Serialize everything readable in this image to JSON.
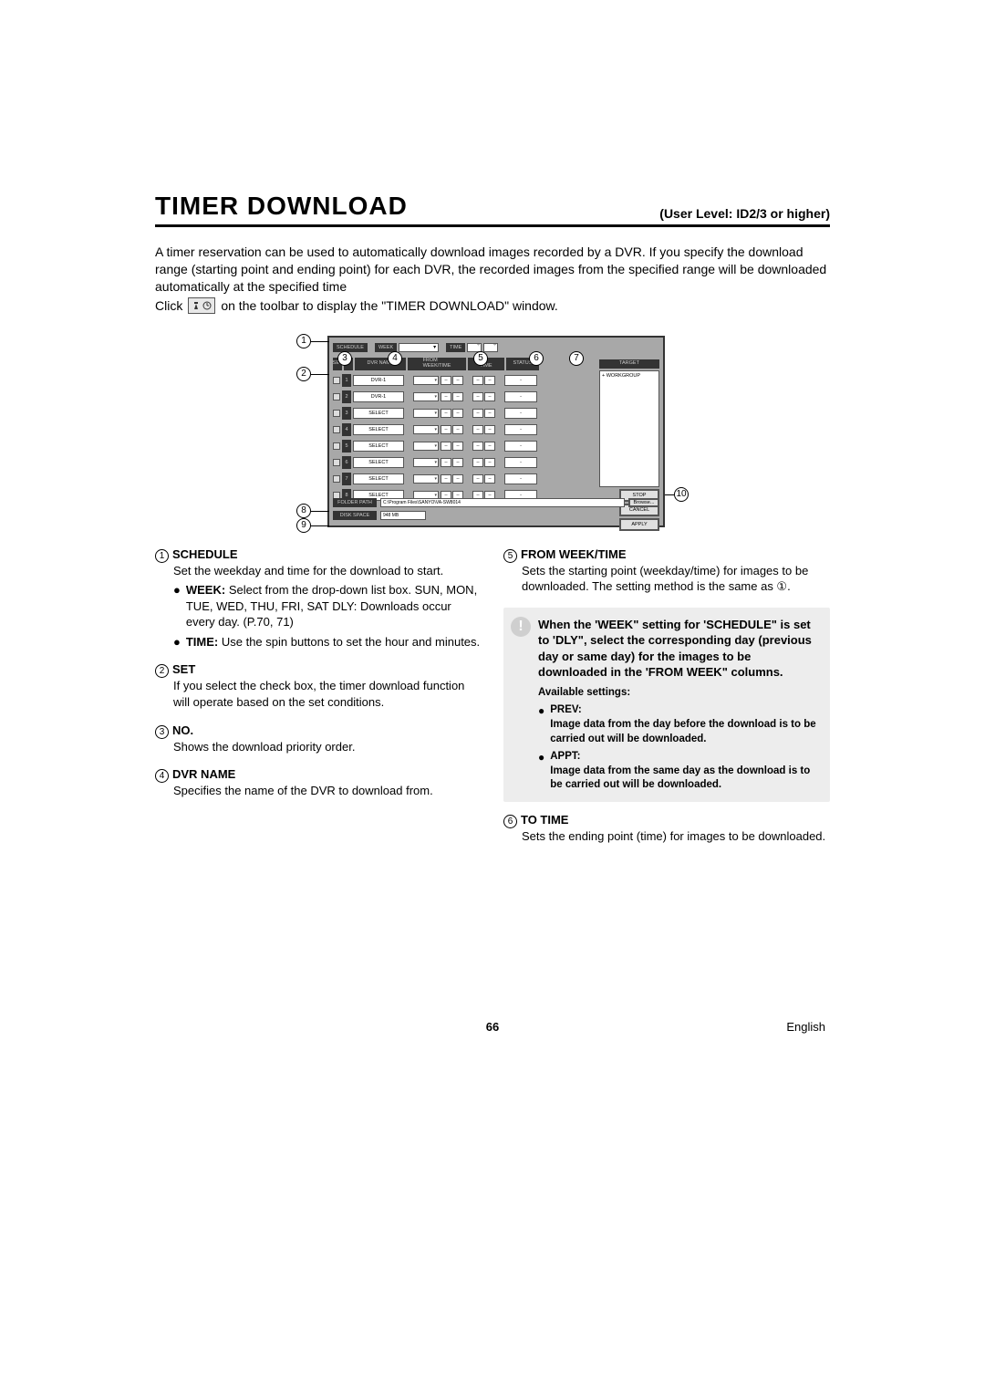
{
  "title": "TIMER DOWNLOAD",
  "user_level": "(User Level: ID2/3 or higher)",
  "intro": {
    "p1": "A timer reservation can be used to automatically download images recorded by a DVR. If you specify the download range (starting point and ending point) for each DVR, the recorded images from the specified range will be downloaded automatically at the specified time",
    "click_before": "Click",
    "click_after": "on the toolbar to display the \"TIMER DOWNLOAD\" window."
  },
  "dialog": {
    "labels": {
      "schedule": "SCHEDULE",
      "week": "WEEK",
      "time": "TIME",
      "set": "SET",
      "dvr_name": "DVR NAME",
      "from": "FROM\nWEEK/TIME",
      "to": "TO\nTIME",
      "status": "STATUS",
      "target": "TARGET",
      "folder_path": "FOLDER PATH",
      "disk_space": "DISK SPACE"
    },
    "rows": [
      {
        "no": "1",
        "dvr": "DVR-1",
        "status": "-"
      },
      {
        "no": "2",
        "dvr": "DVR-1",
        "status": "-"
      },
      {
        "no": "3",
        "dvr": "SELECT",
        "status": "-"
      },
      {
        "no": "4",
        "dvr": "SELECT",
        "status": "-"
      },
      {
        "no": "5",
        "dvr": "SELECT",
        "status": "-"
      },
      {
        "no": "6",
        "dvr": "SELECT",
        "status": "-"
      },
      {
        "no": "7",
        "dvr": "SELECT",
        "status": "-"
      },
      {
        "no": "8",
        "dvr": "SELECT",
        "status": "-"
      }
    ],
    "target_item": "+ WORKGROUP",
    "buttons": {
      "stop": "STOP",
      "cancel": "CANCEL",
      "apply": "APPLY",
      "browse": "Browse..."
    },
    "folder_value": "C:\\Program Files\\SANYO\\VA-SW8014",
    "disk_value": "948 MB"
  },
  "callouts": [
    "1",
    "2",
    "3",
    "4",
    "5",
    "6",
    "7",
    "8",
    "9",
    "10"
  ],
  "doc": {
    "schedule": {
      "head": "SCHEDULE",
      "body": "Set the weekday and time for the download to start.",
      "week_b": "WEEK:",
      "week_t": " Select from the drop-down list box. SUN, MON, TUE, WED, THU, FRI, SAT DLY: Downloads occur every day. (P.70, 71)",
      "time_b": "TIME:",
      "time_t": " Use the spin buttons to set the hour and minutes."
    },
    "set": {
      "head": "SET",
      "body": "If you select the check box, the timer download function will operate based on the set conditions."
    },
    "no": {
      "head": "NO.",
      "body": "Shows the download priority order."
    },
    "dvr": {
      "head": "DVR NAME",
      "body": "Specifies the name of the DVR to download from."
    },
    "from": {
      "head": "FROM WEEK/TIME",
      "body": "Sets the starting point (weekday/time) for images to be downloaded. The setting method is the same as ①."
    },
    "note": {
      "main": "When the 'WEEK\" setting for 'SCHEDULE\" is set to 'DLY\", select the corresponding day (previous day or same day) for the images to be downloaded in the 'FROM WEEK\" columns.",
      "avail": "Available settings:",
      "prev_h": "PREV:",
      "prev_t": "Image data from the day before the download is to be carried out will be downloaded.",
      "appt_h": "APPT:",
      "appt_t": "Image data from the same day as the download is to be carried out will be downloaded."
    },
    "to": {
      "head": "TO TIME",
      "body": "Sets the ending point (time) for images to be downloaded."
    }
  },
  "footer": {
    "page": "66",
    "lang": "English"
  }
}
